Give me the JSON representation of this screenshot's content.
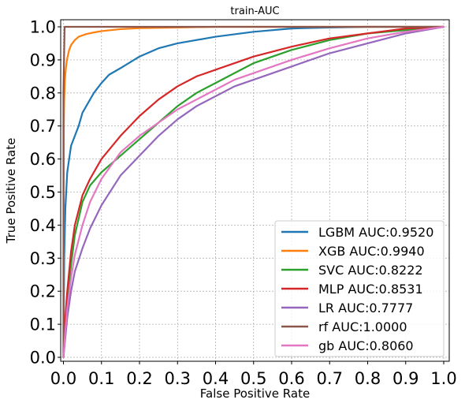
{
  "chart_data": {
    "type": "line",
    "title": "train-AUC",
    "xlabel": "False Positive Rate",
    "ylabel": "True Positive Rate",
    "xlim": [
      0,
      1
    ],
    "ylim": [
      0,
      1
    ],
    "xticks": [
      "0.0",
      "0.1",
      "0.2",
      "0.3",
      "0.4",
      "0.5",
      "0.6",
      "0.7",
      "0.8",
      "0.9",
      "1.0"
    ],
    "yticks": [
      "0.0",
      "0.1",
      "0.2",
      "0.3",
      "0.4",
      "0.5",
      "0.6",
      "0.7",
      "0.8",
      "0.9",
      "1.0"
    ],
    "grid": true,
    "legend_position": "lower-right",
    "series": [
      {
        "name": "LGBM AUC:0.9520",
        "color": "#1f77b4",
        "x": [
          0,
          0.002,
          0.005,
          0.01,
          0.015,
          0.02,
          0.03,
          0.04,
          0.05,
          0.06,
          0.08,
          0.1,
          0.12,
          0.15,
          0.2,
          0.25,
          0.3,
          0.4,
          0.5,
          0.6,
          0.7,
          0.8,
          0.9,
          1.0
        ],
        "y": [
          0,
          0.3,
          0.45,
          0.56,
          0.6,
          0.64,
          0.67,
          0.7,
          0.74,
          0.76,
          0.8,
          0.83,
          0.855,
          0.875,
          0.91,
          0.935,
          0.95,
          0.97,
          0.985,
          0.995,
          0.998,
          1.0,
          1.0,
          1.0
        ]
      },
      {
        "name": "XGB AUC:0.9940",
        "color": "#ff7f0e",
        "x": [
          0,
          0.001,
          0.002,
          0.004,
          0.006,
          0.008,
          0.01,
          0.015,
          0.02,
          0.03,
          0.04,
          0.06,
          0.08,
          0.1,
          0.15,
          0.2,
          0.3,
          0.4,
          0.6,
          1.0
        ],
        "y": [
          0,
          0.7,
          0.78,
          0.84,
          0.87,
          0.89,
          0.905,
          0.93,
          0.945,
          0.96,
          0.97,
          0.978,
          0.983,
          0.987,
          0.993,
          0.996,
          0.998,
          1.0,
          1.0,
          1.0
        ]
      },
      {
        "name": "SVC AUC:0.8222",
        "color": "#2ca02c",
        "x": [
          0,
          0.005,
          0.01,
          0.02,
          0.03,
          0.05,
          0.07,
          0.1,
          0.15,
          0.2,
          0.25,
          0.3,
          0.35,
          0.4,
          0.45,
          0.5,
          0.55,
          0.6,
          0.7,
          0.8,
          0.9,
          1.0
        ],
        "y": [
          0,
          0.1,
          0.18,
          0.28,
          0.37,
          0.47,
          0.52,
          0.56,
          0.61,
          0.66,
          0.71,
          0.76,
          0.8,
          0.83,
          0.86,
          0.89,
          0.91,
          0.93,
          0.96,
          0.98,
          0.99,
          1.0
        ]
      },
      {
        "name": "MLP AUC:0.8531",
        "color": "#d62728",
        "x": [
          0,
          0.005,
          0.01,
          0.02,
          0.03,
          0.05,
          0.07,
          0.1,
          0.15,
          0.2,
          0.25,
          0.3,
          0.35,
          0.4,
          0.45,
          0.5,
          0.6,
          0.7,
          0.8,
          0.9,
          1.0
        ],
        "y": [
          0,
          0.12,
          0.2,
          0.32,
          0.4,
          0.49,
          0.54,
          0.6,
          0.67,
          0.73,
          0.78,
          0.82,
          0.85,
          0.87,
          0.89,
          0.91,
          0.94,
          0.965,
          0.98,
          0.995,
          1.0
        ]
      },
      {
        "name": "LR AUC:0.7777",
        "color": "#9467bd",
        "x": [
          0,
          0.005,
          0.01,
          0.02,
          0.03,
          0.05,
          0.07,
          0.1,
          0.15,
          0.2,
          0.25,
          0.3,
          0.35,
          0.4,
          0.45,
          0.5,
          0.55,
          0.6,
          0.7,
          0.8,
          0.9,
          1.0
        ],
        "y": [
          0,
          0.06,
          0.12,
          0.2,
          0.26,
          0.33,
          0.39,
          0.46,
          0.55,
          0.61,
          0.67,
          0.72,
          0.76,
          0.79,
          0.82,
          0.84,
          0.86,
          0.88,
          0.92,
          0.95,
          0.98,
          1.0
        ]
      },
      {
        "name": "rf AUC:1.0000",
        "color": "#8c564b",
        "x": [
          0,
          0,
          0.003,
          1.0
        ],
        "y": [
          0,
          0.8,
          1.0,
          1.0
        ]
      },
      {
        "name": "gb AUC:0.8060",
        "color": "#e377c2",
        "x": [
          0,
          0.005,
          0.01,
          0.02,
          0.03,
          0.05,
          0.07,
          0.1,
          0.15,
          0.2,
          0.25,
          0.3,
          0.35,
          0.4,
          0.45,
          0.5,
          0.6,
          0.7,
          0.8,
          0.9,
          1.0
        ],
        "y": [
          0,
          0.08,
          0.15,
          0.24,
          0.31,
          0.4,
          0.47,
          0.54,
          0.62,
          0.67,
          0.71,
          0.75,
          0.78,
          0.81,
          0.84,
          0.86,
          0.9,
          0.935,
          0.965,
          0.985,
          1.0
        ]
      }
    ]
  }
}
